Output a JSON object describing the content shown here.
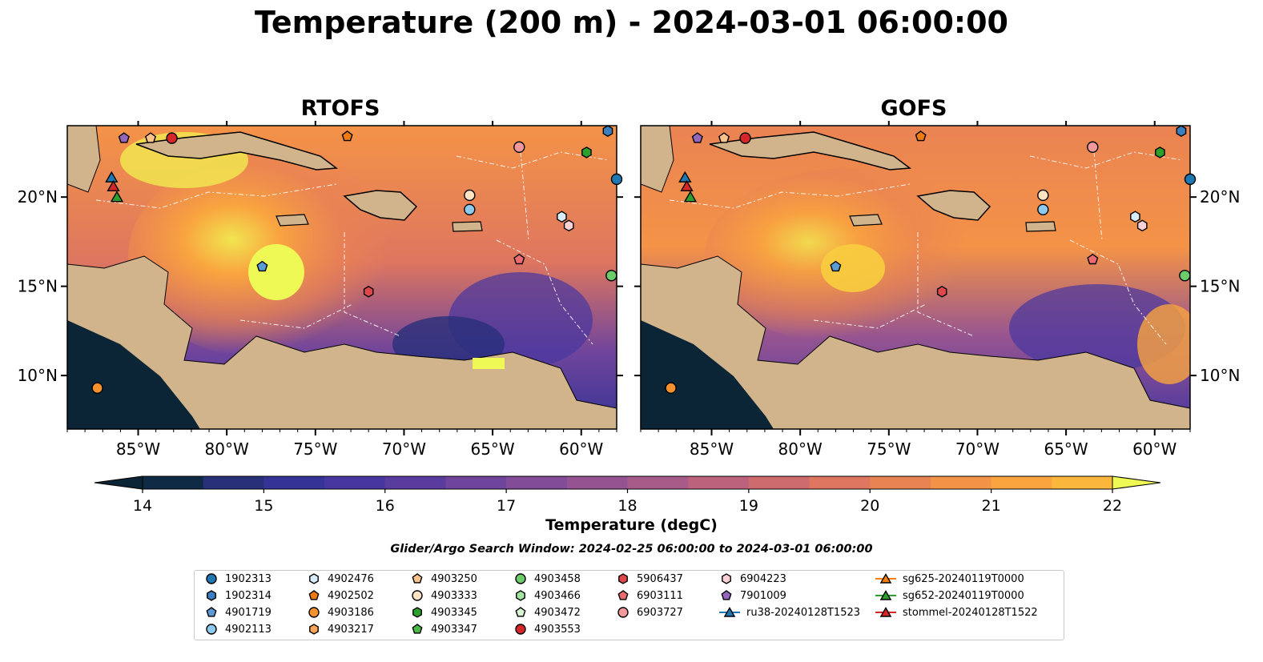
{
  "title": "Temperature (200 m) - 2024-03-01 06:00:00",
  "panels": [
    {
      "title": "RTOFS",
      "lon_ticks": [
        "85°W",
        "80°W",
        "75°W",
        "70°W",
        "65°W",
        "60°W"
      ],
      "lat_ticks": [
        "20°N",
        "15°N",
        "10°N"
      ]
    },
    {
      "title": "GOFS",
      "lon_ticks": [
        "85°W",
        "80°W",
        "75°W",
        "70°W",
        "65°W",
        "60°W"
      ],
      "lat_ticks": [
        "20°N",
        "15°N",
        "10°N"
      ]
    }
  ],
  "map_extent": {
    "lon": [
      -89,
      -58
    ],
    "lat": [
      7,
      24
    ]
  },
  "colorbar": {
    "label": "Temperature (degC)",
    "min": 14,
    "max": 22,
    "ticks": [
      "14",
      "15",
      "16",
      "17",
      "18",
      "19",
      "20",
      "21",
      "22"
    ],
    "colors": [
      "#1c2a5a",
      "#28307a",
      "#353496",
      "#47369f",
      "#5a3c9e",
      "#6e449c",
      "#824c98",
      "#955491",
      "#a85b88",
      "#bc627c",
      "#ce6b6e",
      "#de7660",
      "#ea8353",
      "#f49347",
      "#f9a43f",
      "#fbb73c",
      "#f8cd3f",
      "#f1e550"
    ],
    "under_color": "#0b2436",
    "over_color": "#eef956"
  },
  "search_window": "Glider/Argo Search Window: 2024-02-25 06:00:00 to 2024-03-01 06:00:00",
  "legend": [
    {
      "label": "1902313",
      "marker": "circle",
      "color": "#1f77b4"
    },
    {
      "label": "1902314",
      "marker": "hexagon",
      "color": "#3b7fc0"
    },
    {
      "label": "4901719",
      "marker": "pentagon",
      "color": "#5b9bd5"
    },
    {
      "label": "4902113",
      "marker": "circle",
      "color": "#8ec9ee"
    },
    {
      "label": "4902476",
      "marker": "hexagon",
      "color": "#d9ecfa"
    },
    {
      "label": "4902502",
      "marker": "pentagon",
      "color": "#ee7a12"
    },
    {
      "label": "4903186",
      "marker": "circle",
      "color": "#f5922e"
    },
    {
      "label": "4903217",
      "marker": "hexagon",
      "color": "#f9a65a"
    },
    {
      "label": "4903250",
      "marker": "pentagon",
      "color": "#fcc48b"
    },
    {
      "label": "4903333",
      "marker": "circle",
      "color": "#fde3c4"
    },
    {
      "label": "4903345",
      "marker": "hexagon",
      "color": "#2ca02c"
    },
    {
      "label": "4903347",
      "marker": "pentagon",
      "color": "#4cb848"
    },
    {
      "label": "4903458",
      "marker": "circle",
      "color": "#6dcc6a"
    },
    {
      "label": "4903466",
      "marker": "hexagon",
      "color": "#a6e3a1"
    },
    {
      "label": "4903472",
      "marker": "pentagon",
      "color": "#d8f5d2"
    },
    {
      "label": "4903553",
      "marker": "circle",
      "color": "#d62728"
    },
    {
      "label": "5906437",
      "marker": "hexagon",
      "color": "#e0474a"
    },
    {
      "label": "6903111",
      "marker": "pentagon",
      "color": "#ec6b70"
    },
    {
      "label": "6903727",
      "marker": "circle",
      "color": "#f4999b"
    },
    {
      "label": "6904223",
      "marker": "hexagon",
      "color": "#fcd1d3"
    },
    {
      "label": "7901009",
      "marker": "pentagon",
      "color": "#9467bd"
    },
    {
      "label": "ru38-20240128T1523",
      "marker": "triangle-line",
      "color": "#1f77b4"
    },
    {
      "label": "sg625-20240119T0000",
      "marker": "triangle-line",
      "color": "#ff7f0e"
    },
    {
      "label": "sg652-20240119T0000",
      "marker": "triangle-line",
      "color": "#2ca02c"
    },
    {
      "label": "stommel-20240128T1522",
      "marker": "triangle-line",
      "color": "#d62728"
    }
  ],
  "observations": [
    {
      "id": "1902313",
      "lon": -58.0,
      "lat": 21.0
    },
    {
      "id": "1902314",
      "lon": -58.5,
      "lat": 23.7
    },
    {
      "id": "4901719",
      "lon": -78.0,
      "lat": 16.1
    },
    {
      "id": "4902113",
      "lon": -66.3,
      "lat": 19.3
    },
    {
      "id": "4902476",
      "lon": -61.1,
      "lat": 18.9
    },
    {
      "id": "4902502",
      "lon": -73.2,
      "lat": 23.4
    },
    {
      "id": "4903186",
      "lon": -87.3,
      "lat": 9.3
    },
    {
      "id": "4903250",
      "lon": -84.3,
      "lat": 23.3
    },
    {
      "id": "4903333",
      "lon": -66.3,
      "lat": 20.1
    },
    {
      "id": "4903345",
      "lon": -59.7,
      "lat": 22.5
    },
    {
      "id": "4903458",
      "lon": -58.3,
      "lat": 15.6
    },
    {
      "id": "4903553",
      "lon": -83.1,
      "lat": 23.3
    },
    {
      "id": "5906437",
      "lon": -72.0,
      "lat": 14.7
    },
    {
      "id": "6903111",
      "lon": -63.5,
      "lat": 16.5
    },
    {
      "id": "6903727",
      "lon": -63.5,
      "lat": 22.8
    },
    {
      "id": "6904223",
      "lon": -60.7,
      "lat": 18.4
    },
    {
      "id": "7901009",
      "lon": -85.8,
      "lat": 23.3
    }
  ],
  "tracks": [
    {
      "id": "ru38-20240128T1523",
      "lon": -86.5,
      "lat": 21.1
    },
    {
      "id": "stommel-20240128T1522",
      "lon": -86.4,
      "lat": 20.6
    },
    {
      "id": "sg652-20240119T0000",
      "lon": -86.2,
      "lat": 20.0
    }
  ]
}
